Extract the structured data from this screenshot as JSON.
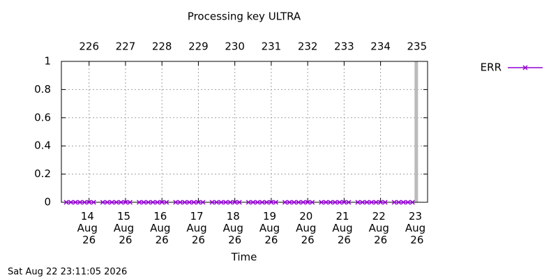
{
  "chart_data": {
    "type": "line",
    "title": "Processing key ULTRA",
    "x_label": "Time",
    "timestamp": "Sat Aug 22 23:11:05 2026",
    "x": [
      13.375,
      13.5,
      13.625,
      13.75,
      13.875,
      14,
      14.125,
      14.25,
      14.375,
      14.5,
      14.625,
      14.75,
      14.875,
      15,
      15.125,
      15.25,
      15.375,
      15.5,
      15.625,
      15.75,
      15.875,
      16,
      16.125,
      16.25,
      16.375,
      16.5,
      16.625,
      16.75,
      16.875,
      17,
      17.125,
      17.25,
      17.375,
      17.5,
      17.625,
      17.75,
      17.875,
      18,
      18.125,
      18.25,
      18.375,
      18.5,
      18.625,
      18.75,
      18.875,
      19,
      19.125,
      19.25,
      19.375,
      19.5,
      19.625,
      19.75,
      19.875,
      20,
      20.125,
      20.25,
      20.375,
      20.5,
      20.625,
      20.75,
      20.875,
      21,
      21.125,
      21.25,
      21.375,
      21.5,
      21.625,
      21.75,
      21.875,
      22,
      22.125,
      22.25,
      22.375,
      22.5,
      22.625,
      22.75,
      22.875
    ],
    "series": [
      {
        "name": "ERR",
        "color": "#9400d3",
        "values": [
          0,
          0,
          0,
          0,
          0,
          0,
          0,
          null,
          0,
          0,
          0,
          0,
          0,
          0,
          0,
          null,
          0,
          0,
          0,
          0,
          0,
          0,
          0,
          null,
          0,
          0,
          0,
          0,
          0,
          0,
          0,
          null,
          0,
          0,
          0,
          0,
          0,
          0,
          0,
          null,
          0,
          0,
          0,
          0,
          0,
          0,
          0,
          null,
          0,
          0,
          0,
          0,
          0,
          0,
          0,
          null,
          0,
          0,
          0,
          0,
          0,
          0,
          0,
          null,
          0,
          0,
          0,
          0,
          0,
          0,
          0,
          null,
          0,
          0,
          0,
          0,
          0
        ]
      }
    ],
    "xlim": [
      13.24,
      23.29
    ],
    "xticks": [
      {
        "value": 14,
        "label": "14 Aug 26"
      },
      {
        "value": 15,
        "label": "15 Aug 26"
      },
      {
        "value": 16,
        "label": "16 Aug 26"
      },
      {
        "value": 17,
        "label": "17 Aug 26"
      },
      {
        "value": 18,
        "label": "18 Aug 26"
      },
      {
        "value": 19,
        "label": "19 Aug 26"
      },
      {
        "value": 20,
        "label": "20 Aug 26"
      },
      {
        "value": 21,
        "label": "21 Aug 26"
      },
      {
        "value": 22,
        "label": "22 Aug 26"
      },
      {
        "value": 23,
        "label": "23 Aug 26"
      }
    ],
    "x2lim": [
      225.24,
      235.29
    ],
    "x2ticks": [
      226,
      227,
      228,
      229,
      230,
      231,
      232,
      233,
      234,
      235
    ],
    "ylim": [
      0,
      1
    ],
    "yticks": [
      0,
      0.2,
      0.4,
      0.6,
      0.8,
      1
    ],
    "now_marker": {
      "x": 22.98,
      "color": "#bbbbbb"
    },
    "grid": true,
    "legend": "right"
  }
}
